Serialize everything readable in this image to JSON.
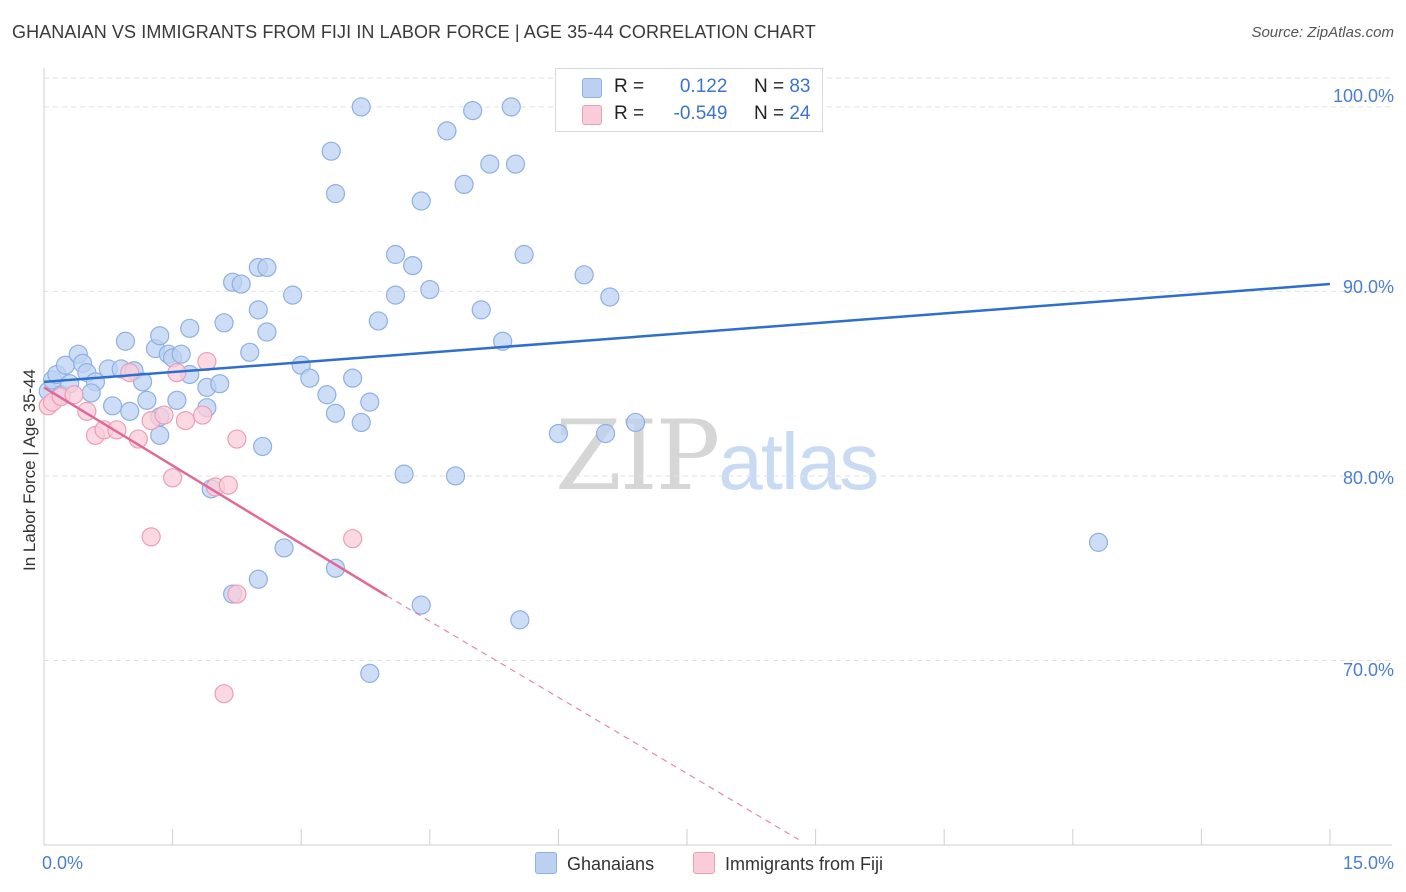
{
  "title": "GHANAIAN VS IMMIGRANTS FROM FIJI IN LABOR FORCE | AGE 35-44 CORRELATION CHART",
  "source": "Source: ZipAtlas.com",
  "watermark": {
    "zip": "ZIP",
    "atlas": "atlas"
  },
  "legend": {
    "r_label": "R =",
    "n_label": "N =",
    "rows": [
      {
        "r": "0.122",
        "n": "83",
        "color": "#b7cff3"
      },
      {
        "r": "-0.549",
        "n": "24",
        "color": "#f8c6d6"
      }
    ]
  },
  "colors": {
    "blue_fill": "#bcd1f2",
    "blue_stroke": "#8eb0e3",
    "blue_line": "#2f6fcc",
    "pink_fill": "#f9ccd9",
    "pink_stroke": "#ee9db7",
    "pink_line": "#e06a97",
    "grid": "#e2e2e2",
    "axis_text": "#4a7fd0"
  },
  "chart_data": {
    "type": "scatter",
    "title": "GHANAIAN VS IMMIGRANTS FROM FIJI IN LABOR FORCE | AGE 35-44 CORRELATION CHART",
    "xlabel": "",
    "ylabel": "In Labor Force | Age 35-44",
    "xlim": [
      0,
      15
    ],
    "ylim": [
      60,
      102
    ],
    "x_tick_labels": [
      "0.0%",
      "15.0%"
    ],
    "y_ticks": [
      70,
      80,
      90,
      100
    ],
    "y_tick_labels": [
      "70.0%",
      "80.0%",
      "90.0%",
      "100.0%"
    ],
    "series": [
      {
        "name": "Ghanaians",
        "r": 0.122,
        "n": 83,
        "trend": {
          "x": [
            0.0,
            15.0
          ],
          "y": [
            85.1,
            90.4
          ]
        },
        "points": [
          [
            0.05,
            84.6
          ],
          [
            0.1,
            85.2
          ],
          [
            0.15,
            85.5
          ],
          [
            0.2,
            84.4
          ],
          [
            0.25,
            86.0
          ],
          [
            0.3,
            85.0
          ],
          [
            0.4,
            86.6
          ],
          [
            0.45,
            86.1
          ],
          [
            0.5,
            85.6
          ],
          [
            0.6,
            85.1
          ],
          [
            0.75,
            85.8
          ],
          [
            0.9,
            85.8
          ],
          [
            0.95,
            87.3
          ],
          [
            1.05,
            85.7
          ],
          [
            1.15,
            85.1
          ],
          [
            1.3,
            86.9
          ],
          [
            1.35,
            87.6
          ],
          [
            1.45,
            86.6
          ],
          [
            1.5,
            86.4
          ],
          [
            1.6,
            86.6
          ],
          [
            1.7,
            85.5
          ],
          [
            1.9,
            84.8
          ],
          [
            2.05,
            85.0
          ],
          [
            0.55,
            84.5
          ],
          [
            0.8,
            83.8
          ],
          [
            1.0,
            83.5
          ],
          [
            1.2,
            84.1
          ],
          [
            1.35,
            83.2
          ],
          [
            1.55,
            84.1
          ],
          [
            1.9,
            83.7
          ],
          [
            1.7,
            88.0
          ],
          [
            2.1,
            88.3
          ],
          [
            2.4,
            86.7
          ],
          [
            2.6,
            87.8
          ],
          [
            2.5,
            89.0
          ],
          [
            2.5,
            91.3
          ],
          [
            2.6,
            91.3
          ],
          [
            2.2,
            90.5
          ],
          [
            2.3,
            90.4
          ],
          [
            2.9,
            89.8
          ],
          [
            3.0,
            86.0
          ],
          [
            3.1,
            85.3
          ],
          [
            3.3,
            84.4
          ],
          [
            3.4,
            83.4
          ],
          [
            3.6,
            85.3
          ],
          [
            3.8,
            84.0
          ],
          [
            3.7,
            82.9
          ],
          [
            3.9,
            88.4
          ],
          [
            4.1,
            89.8
          ],
          [
            4.1,
            92.0
          ],
          [
            4.3,
            91.4
          ],
          [
            4.5,
            90.1
          ],
          [
            4.4,
            94.9
          ],
          [
            3.35,
            97.6
          ],
          [
            4.7,
            98.7
          ],
          [
            5.0,
            99.8
          ],
          [
            5.5,
            96.9
          ],
          [
            5.2,
            96.9
          ],
          [
            5.45,
            100.0
          ],
          [
            3.7,
            100.0
          ],
          [
            3.4,
            95.3
          ],
          [
            4.9,
            95.8
          ],
          [
            5.1,
            89.0
          ],
          [
            5.35,
            87.3
          ],
          [
            5.6,
            92.0
          ],
          [
            6.0,
            82.3
          ],
          [
            6.55,
            82.3
          ],
          [
            6.9,
            82.9
          ],
          [
            6.3,
            90.9
          ],
          [
            6.6,
            89.7
          ],
          [
            4.2,
            80.1
          ],
          [
            4.8,
            80.0
          ],
          [
            3.8,
            69.3
          ],
          [
            2.8,
            76.1
          ],
          [
            3.4,
            75.0
          ],
          [
            2.5,
            74.4
          ],
          [
            2.2,
            73.6
          ],
          [
            5.55,
            72.2
          ],
          [
            4.4,
            73.0
          ],
          [
            1.35,
            82.2
          ],
          [
            2.55,
            81.6
          ],
          [
            1.95,
            79.3
          ],
          [
            12.3,
            76.4
          ]
        ]
      },
      {
        "name": "Immigrants from Fiji",
        "r": -0.549,
        "n": 24,
        "trend": {
          "x": [
            0.0,
            4.0
          ],
          "y": [
            84.8,
            73.5
          ]
        },
        "trend_dashed": {
          "x": [
            4.0,
            8.8
          ],
          "y": [
            73.5,
            60.3
          ]
        },
        "points": [
          [
            0.05,
            83.8
          ],
          [
            0.1,
            84.0
          ],
          [
            0.2,
            84.3
          ],
          [
            0.35,
            84.4
          ],
          [
            0.5,
            83.5
          ],
          [
            0.6,
            82.2
          ],
          [
            0.7,
            82.5
          ],
          [
            0.85,
            82.5
          ],
          [
            1.0,
            85.6
          ],
          [
            1.1,
            82.0
          ],
          [
            1.25,
            83.0
          ],
          [
            1.4,
            83.3
          ],
          [
            1.55,
            85.6
          ],
          [
            1.65,
            83.0
          ],
          [
            1.85,
            83.3
          ],
          [
            1.9,
            86.2
          ],
          [
            2.0,
            79.4
          ],
          [
            2.25,
            82.0
          ],
          [
            1.5,
            79.9
          ],
          [
            1.25,
            76.7
          ],
          [
            2.15,
            79.5
          ],
          [
            2.25,
            73.6
          ],
          [
            2.1,
            68.2
          ],
          [
            3.6,
            76.6
          ]
        ]
      }
    ]
  }
}
